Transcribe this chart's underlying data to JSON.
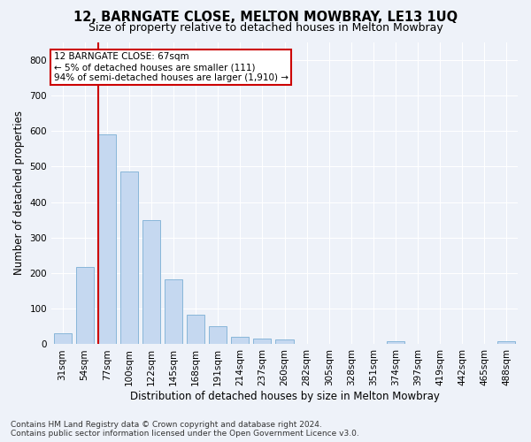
{
  "title": "12, BARNGATE CLOSE, MELTON MOWBRAY, LE13 1UQ",
  "subtitle": "Size of property relative to detached houses in Melton Mowbray",
  "xlabel": "Distribution of detached houses by size in Melton Mowbray",
  "ylabel": "Number of detached properties",
  "categories": [
    "31sqm",
    "54sqm",
    "77sqm",
    "100sqm",
    "122sqm",
    "145sqm",
    "168sqm",
    "191sqm",
    "214sqm",
    "237sqm",
    "260sqm",
    "282sqm",
    "305sqm",
    "328sqm",
    "351sqm",
    "374sqm",
    "397sqm",
    "419sqm",
    "442sqm",
    "465sqm",
    "488sqm"
  ],
  "values": [
    32,
    218,
    590,
    487,
    348,
    183,
    83,
    51,
    20,
    15,
    14,
    0,
    0,
    0,
    0,
    8,
    0,
    0,
    0,
    0,
    8
  ],
  "bar_color": "#c5d8f0",
  "bar_edge_color": "#7bafd4",
  "vline_x_index": 2,
  "vline_color": "#cc0000",
  "annotation_text": "12 BARNGATE CLOSE: 67sqm\n← 5% of detached houses are smaller (111)\n94% of semi-detached houses are larger (1,910) →",
  "annotation_box_color": "#ffffff",
  "annotation_box_edge": "#cc0000",
  "ylim": [
    0,
    850
  ],
  "yticks": [
    0,
    100,
    200,
    300,
    400,
    500,
    600,
    700,
    800
  ],
  "footnote": "Contains HM Land Registry data © Crown copyright and database right 2024.\nContains public sector information licensed under the Open Government Licence v3.0.",
  "bg_color": "#eef2f9",
  "plot_bg_color": "#eef2f9",
  "grid_color": "#ffffff",
  "title_fontsize": 10.5,
  "subtitle_fontsize": 9,
  "xlabel_fontsize": 8.5,
  "ylabel_fontsize": 8.5,
  "tick_fontsize": 7.5,
  "footnote_fontsize": 6.5
}
